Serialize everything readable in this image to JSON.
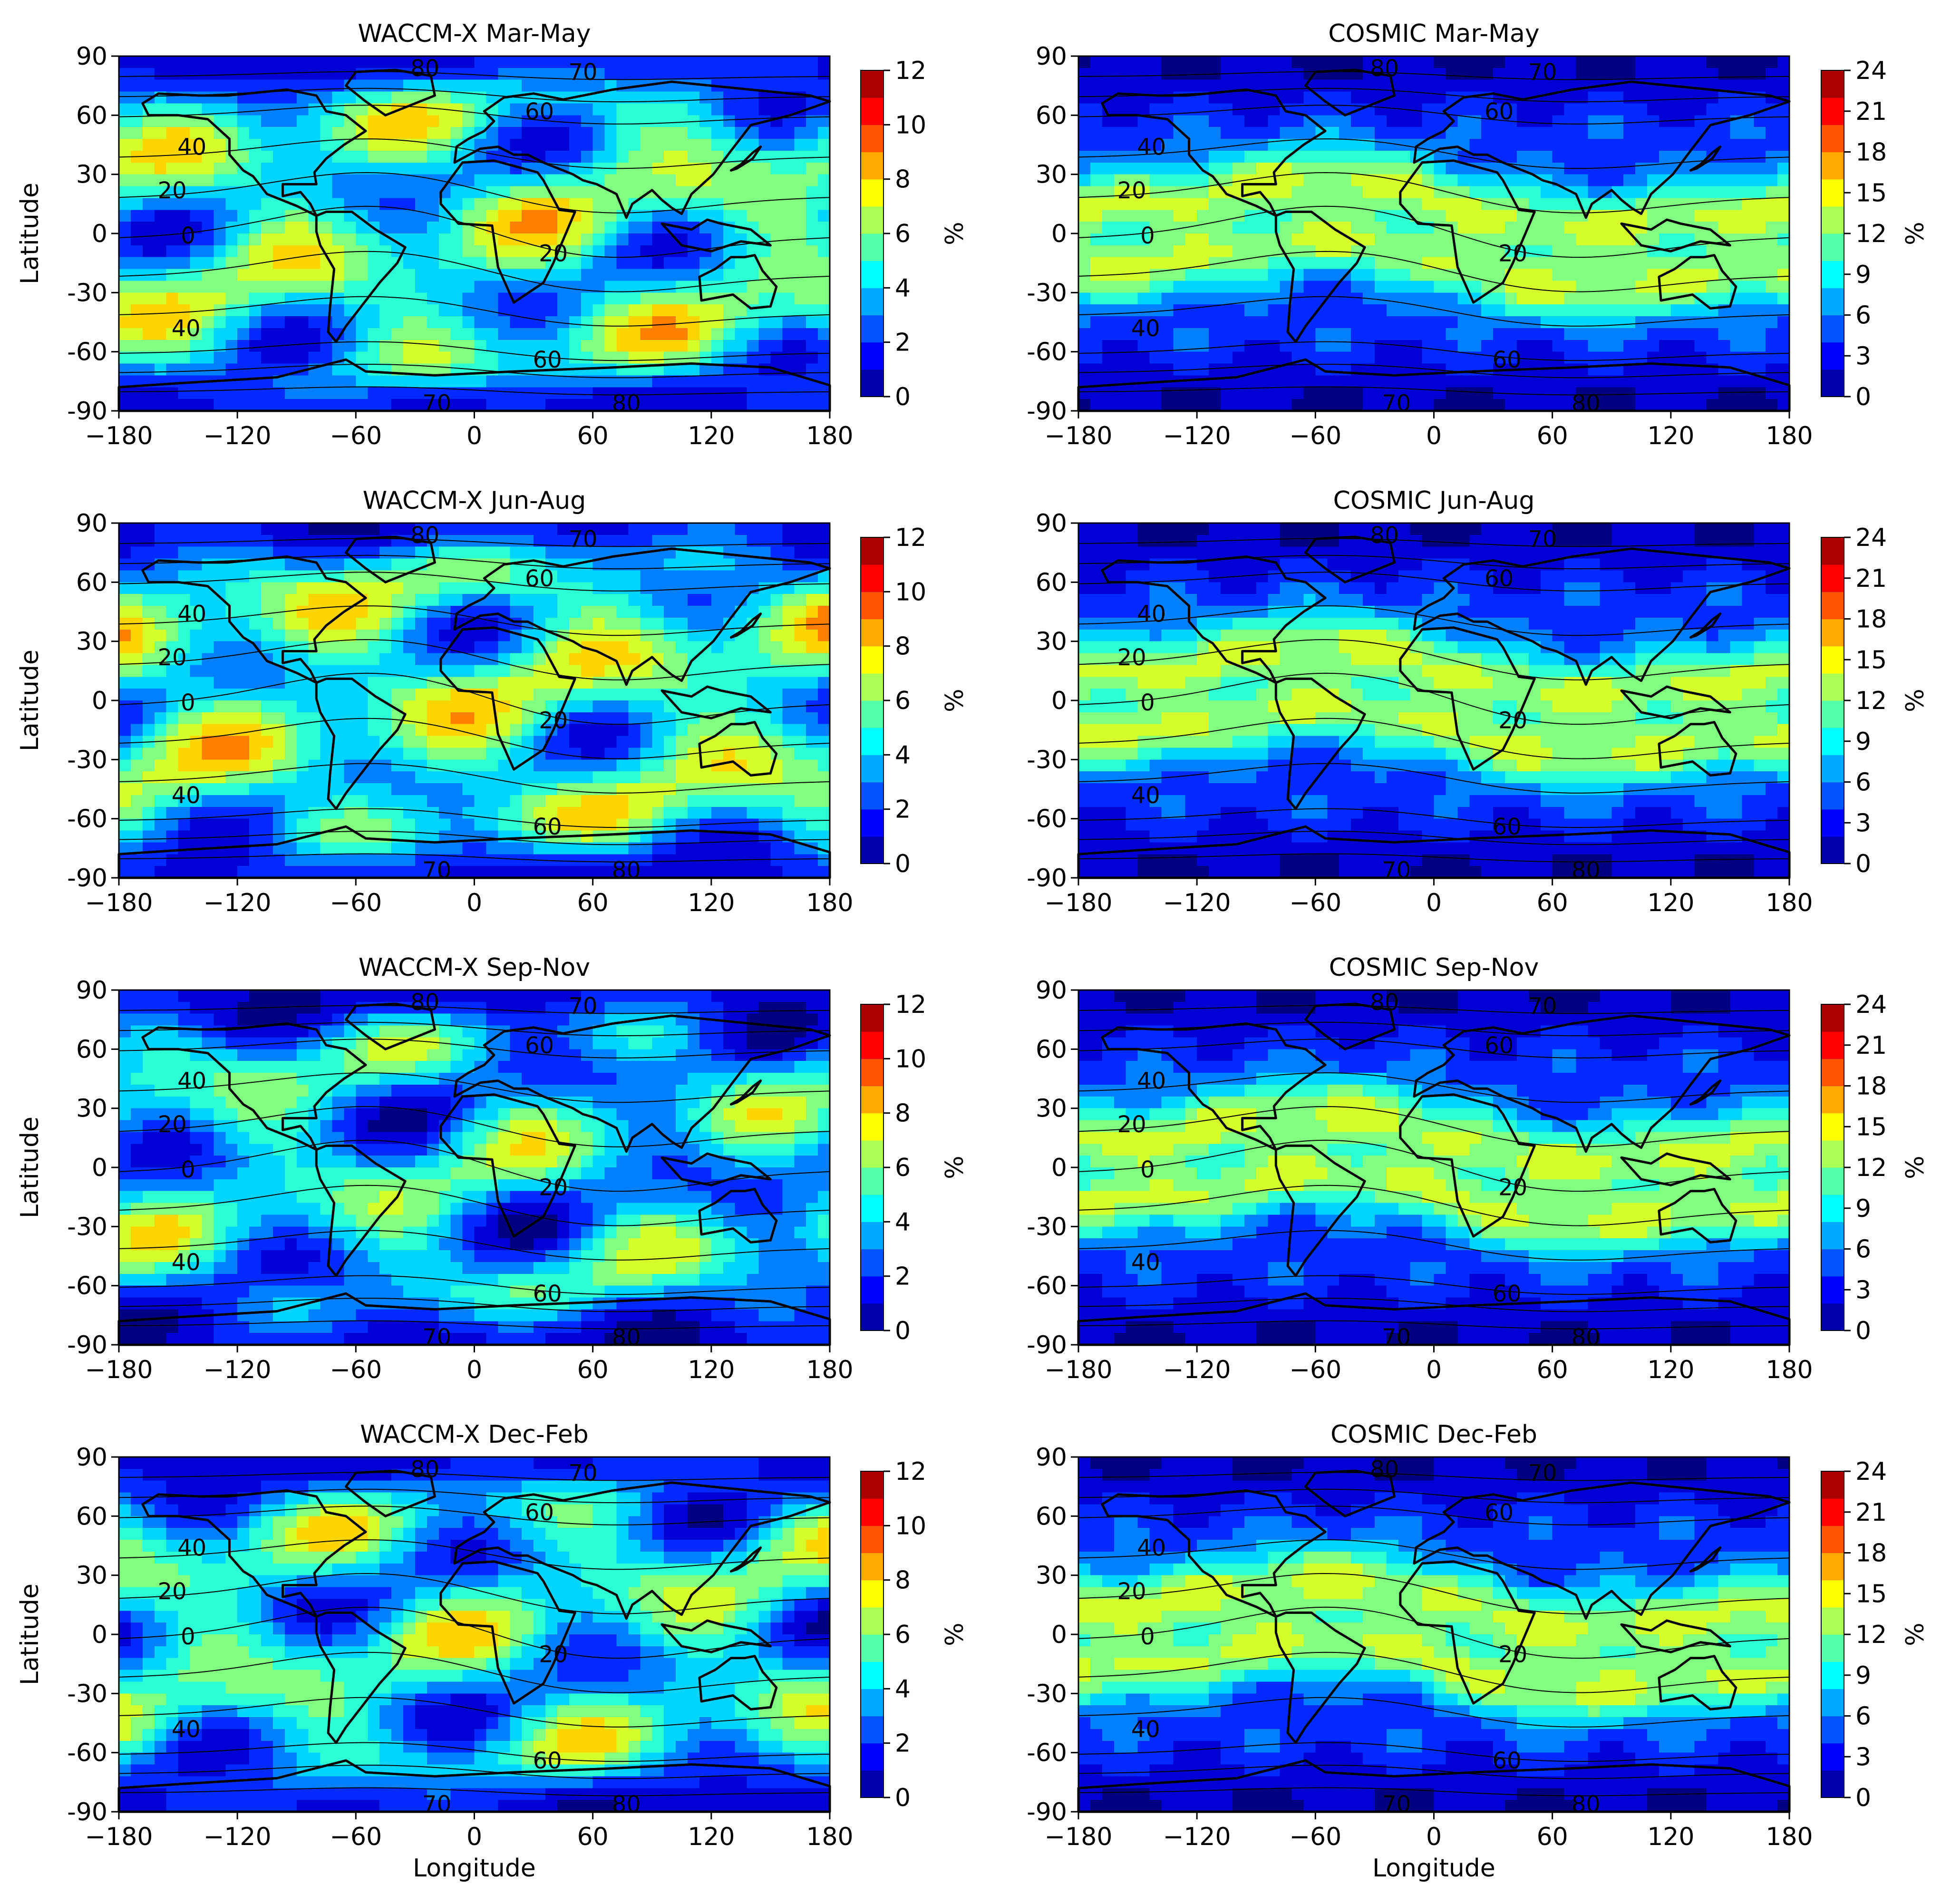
{
  "figure": {
    "x_axis_label": "Longitude",
    "y_axis_label": "Latitude",
    "x_ticks": [
      "−180",
      "−120",
      "−60",
      "0",
      "60",
      "120",
      "180"
    ],
    "y_ticks": [
      "90",
      "60",
      "30",
      "0",
      "-30",
      "-60",
      "-90"
    ],
    "colorbar_unit": "%",
    "colormap": "jet",
    "contour_line_color": "#000000",
    "coastline_color": "#000000"
  },
  "chart_data": [
    {
      "type": "heatmap",
      "title": "WACCM-X Mar-May",
      "xlim": [
        -180,
        180
      ],
      "ylim": [
        -90,
        90
      ],
      "colorbar": {
        "min": 0,
        "max": 12,
        "ticks": [
          "12",
          "10",
          "8",
          "6",
          "4",
          "2",
          "0"
        ]
      },
      "contour_labels": [
        "80",
        "70",
        "60",
        "40",
        "20",
        "0",
        "20",
        "40",
        "60",
        "70",
        "80"
      ]
    },
    {
      "type": "heatmap",
      "title": "COSMIC Mar-May",
      "xlim": [
        -180,
        180
      ],
      "ylim": [
        -90,
        90
      ],
      "colorbar": {
        "min": 0,
        "max": 24,
        "ticks": [
          "24",
          "21",
          "18",
          "15",
          "12",
          "9",
          "6",
          "3",
          "0"
        ]
      },
      "contour_labels": [
        "80",
        "70",
        "60",
        "40",
        "20",
        "0",
        "20",
        "40",
        "60",
        "70",
        "80"
      ]
    },
    {
      "type": "heatmap",
      "title": "WACCM-X Jun-Aug",
      "xlim": [
        -180,
        180
      ],
      "ylim": [
        -90,
        90
      ],
      "colorbar": {
        "min": 0,
        "max": 12,
        "ticks": [
          "12",
          "10",
          "8",
          "6",
          "4",
          "2",
          "0"
        ]
      },
      "contour_labels": [
        "80",
        "70",
        "60",
        "40",
        "20",
        "0",
        "20",
        "40",
        "60",
        "70",
        "80"
      ]
    },
    {
      "type": "heatmap",
      "title": "COSMIC Jun-Aug",
      "xlim": [
        -180,
        180
      ],
      "ylim": [
        -90,
        90
      ],
      "colorbar": {
        "min": 0,
        "max": 24,
        "ticks": [
          "24",
          "21",
          "18",
          "15",
          "12",
          "9",
          "6",
          "3",
          "0"
        ]
      },
      "contour_labels": [
        "80",
        "70",
        "60",
        "40",
        "20",
        "0",
        "20",
        "40",
        "60",
        "70",
        "80"
      ]
    },
    {
      "type": "heatmap",
      "title": "WACCM-X Sep-Nov",
      "xlim": [
        -180,
        180
      ],
      "ylim": [
        -90,
        90
      ],
      "colorbar": {
        "min": 0,
        "max": 12,
        "ticks": [
          "12",
          "10",
          "8",
          "6",
          "4",
          "2",
          "0"
        ]
      },
      "contour_labels": [
        "80",
        "70",
        "60",
        "40",
        "20",
        "0",
        "20",
        "40",
        "60",
        "70",
        "80"
      ]
    },
    {
      "type": "heatmap",
      "title": "COSMIC Sep-Nov",
      "xlim": [
        -180,
        180
      ],
      "ylim": [
        -90,
        90
      ],
      "colorbar": {
        "min": 0,
        "max": 24,
        "ticks": [
          "24",
          "21",
          "18",
          "15",
          "12",
          "9",
          "6",
          "3",
          "0"
        ]
      },
      "contour_labels": [
        "80",
        "70",
        "60",
        "40",
        "20",
        "0",
        "20",
        "40",
        "60",
        "70",
        "80"
      ]
    },
    {
      "type": "heatmap",
      "title": "WACCM-X Dec-Feb",
      "xlim": [
        -180,
        180
      ],
      "ylim": [
        -90,
        90
      ],
      "colorbar": {
        "min": 0,
        "max": 12,
        "ticks": [
          "12",
          "10",
          "8",
          "6",
          "4",
          "2",
          "0"
        ]
      },
      "contour_labels": [
        "80",
        "70",
        "60",
        "40",
        "20",
        "0",
        "20",
        "40",
        "60",
        "70",
        "80"
      ]
    },
    {
      "type": "heatmap",
      "title": "COSMIC Dec-Feb",
      "xlim": [
        -180,
        180
      ],
      "ylim": [
        -90,
        90
      ],
      "colorbar": {
        "min": 0,
        "max": 24,
        "ticks": [
          "24",
          "21",
          "18",
          "15",
          "12",
          "9",
          "6",
          "3",
          "0"
        ]
      },
      "contour_labels": [
        "80",
        "70",
        "60",
        "40",
        "20",
        "0",
        "20",
        "40",
        "60",
        "70",
        "80"
      ]
    }
  ]
}
